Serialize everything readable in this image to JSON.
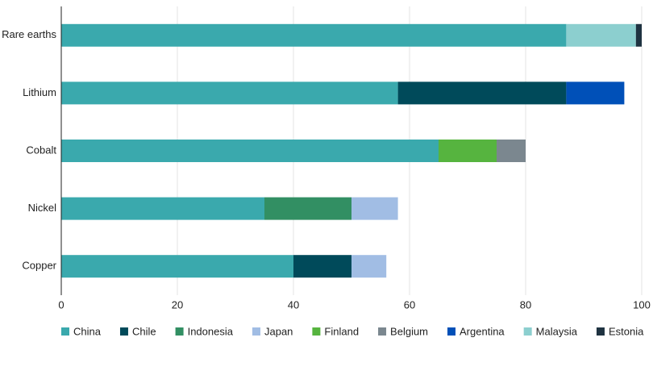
{
  "chart_data": {
    "type": "stacked-bar-horizontal",
    "categories": [
      "Rare earths",
      "Lithium",
      "Cobalt",
      "Nickel",
      "Copper"
    ],
    "series": [
      {
        "name": "China",
        "color": "#3aa9ad",
        "values": [
          87,
          58,
          65,
          35,
          40
        ]
      },
      {
        "name": "Chile",
        "color": "#004a5a",
        "values": [
          null,
          29,
          null,
          null,
          10
        ]
      },
      {
        "name": "Indonesia",
        "color": "#328f63",
        "values": [
          null,
          null,
          null,
          15,
          null
        ]
      },
      {
        "name": "Japan",
        "color": "#a1bde4",
        "values": [
          null,
          null,
          null,
          8,
          6
        ]
      },
      {
        "name": "Finland",
        "color": "#56b43f",
        "values": [
          null,
          null,
          10,
          null,
          null
        ]
      },
      {
        "name": "Belgium",
        "color": "#7b878f",
        "values": [
          null,
          null,
          5,
          null,
          null
        ]
      },
      {
        "name": "Argentina",
        "color": "#0050b8",
        "values": [
          null,
          10,
          null,
          null,
          null
        ]
      },
      {
        "name": "Malaysia",
        "color": "#8ccfcf",
        "values": [
          12,
          null,
          null,
          null,
          null
        ]
      },
      {
        "name": "Estonia",
        "color": "#1f3341",
        "values": [
          1,
          null,
          null,
          null,
          null
        ]
      }
    ],
    "xlim": [
      0,
      100
    ],
    "xticks": [
      0,
      20,
      40,
      60,
      80,
      100
    ],
    "grid": true,
    "legend": "bottom"
  }
}
